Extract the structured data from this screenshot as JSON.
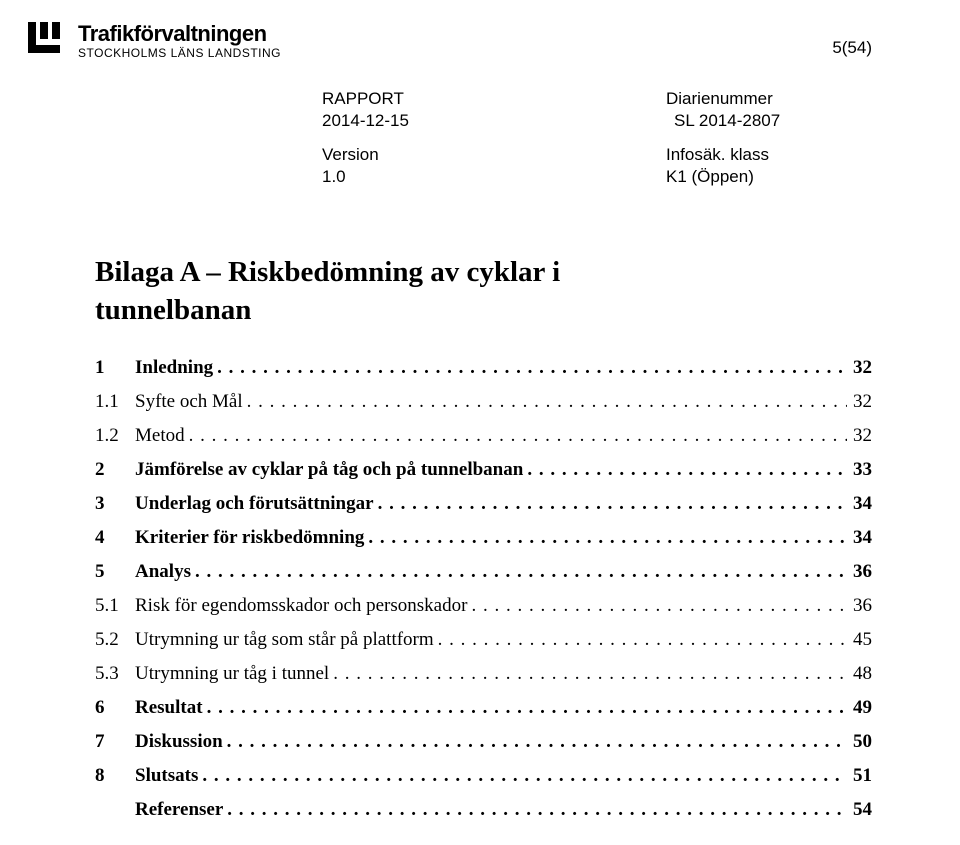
{
  "logo": {
    "title": "Trafikförvaltningen",
    "subtitle": "STOCKHOLMS LÄNS LANDSTING"
  },
  "page_number": "5(54)",
  "meta": {
    "report_label": "RAPPORT",
    "date": "2014-12-15",
    "version_label": "Version",
    "version_value": "1.0",
    "diarie_label": "Diarienummer",
    "diarie_value": "SL 2014-2807",
    "info_label": "Infosäk. klass",
    "info_value": "K1 (Öppen)"
  },
  "heading_line1": "Bilaga A – Riskbedömning av cyklar i",
  "heading_line2": "tunnelbanan",
  "toc": [
    {
      "num": "1",
      "label": "Inledning",
      "page": "32",
      "bold": true
    },
    {
      "num": "1.1",
      "label": "Syfte och Mål",
      "page": "32",
      "bold": false
    },
    {
      "num": "1.2",
      "label": "Metod",
      "page": "32",
      "bold": false
    },
    {
      "num": "2",
      "label": "Jämförelse av cyklar på tåg och på tunnelbanan",
      "page": "33",
      "bold": true
    },
    {
      "num": "3",
      "label": "Underlag och förutsättningar",
      "page": "34",
      "bold": true
    },
    {
      "num": "4",
      "label": "Kriterier för riskbedömning",
      "page": "34",
      "bold": true
    },
    {
      "num": "5",
      "label": "Analys",
      "page": "36",
      "bold": true
    },
    {
      "num": "5.1",
      "label": "Risk för egendomsskador och personskador",
      "page": "36",
      "bold": false
    },
    {
      "num": "5.2",
      "label": "Utrymning ur tåg som står på plattform",
      "page": "45",
      "bold": false
    },
    {
      "num": "5.3",
      "label": "Utrymning ur tåg i tunnel",
      "page": "48",
      "bold": false
    },
    {
      "num": "6",
      "label": "Resultat",
      "page": "49",
      "bold": true
    },
    {
      "num": "7",
      "label": "Diskussion",
      "page": "50",
      "bold": true
    },
    {
      "num": "8",
      "label": "Slutsats",
      "page": "51",
      "bold": true
    },
    {
      "num": "",
      "label": "Referenser",
      "page": "54",
      "bold": true
    }
  ]
}
